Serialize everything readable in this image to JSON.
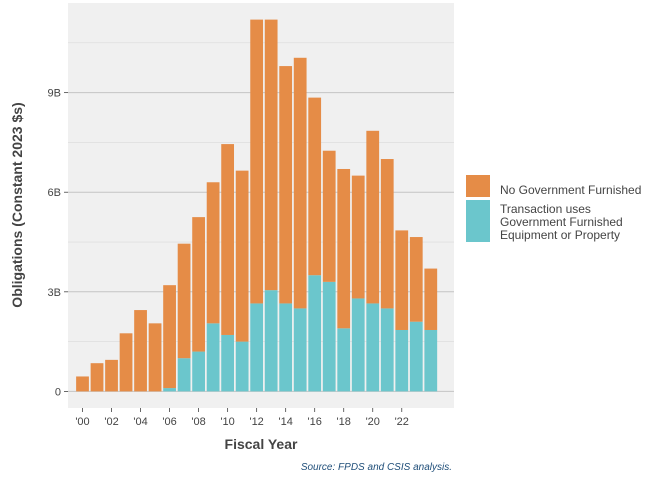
{
  "chart_data": {
    "type": "bar",
    "stacked": true,
    "title": "",
    "xlabel": "Fiscal Year",
    "ylabel": "Obligations (Constant 2023 $s)",
    "caption": "Source: FPDS and CSIS analysis.",
    "categories": [
      2000,
      2001,
      2002,
      2003,
      2004,
      2005,
      2006,
      2007,
      2008,
      2009,
      2010,
      2011,
      2012,
      2013,
      2014,
      2015,
      2016,
      2017,
      2018,
      2019,
      2020,
      2021,
      2022,
      2023,
      2024
    ],
    "x_ticks": [
      {
        "value": 2000,
        "label": "'00"
      },
      {
        "value": 2002,
        "label": "'02"
      },
      {
        "value": 2004,
        "label": "'04"
      },
      {
        "value": 2006,
        "label": "'06"
      },
      {
        "value": 2008,
        "label": "'08"
      },
      {
        "value": 2010,
        "label": "'10"
      },
      {
        "value": 2012,
        "label": "'12"
      },
      {
        "value": 2014,
        "label": "'14"
      },
      {
        "value": 2016,
        "label": "'16"
      },
      {
        "value": 2018,
        "label": "'18"
      },
      {
        "value": 2020,
        "label": "'20"
      },
      {
        "value": 2022,
        "label": "'22"
      }
    ],
    "y_ticks": [
      {
        "value": 0,
        "label": "0"
      },
      {
        "value": 3,
        "label": "3B"
      },
      {
        "value": 6,
        "label": "6B"
      },
      {
        "value": 9,
        "label": "9B"
      }
    ],
    "y_minor_ticks": [
      1.5,
      4.5,
      7.5,
      10.5
    ],
    "ylim": [
      -0.5,
      11.7
    ],
    "grid": true,
    "legend_position": "right",
    "series": [
      {
        "name": "Transaction uses Government Furnished Equipment or Property",
        "legend_lines": [
          "Transaction uses",
          "Government Furnished",
          "Equipment or Property"
        ],
        "color": "#6bc6cc",
        "values": [
          0,
          0,
          0,
          0,
          0,
          0,
          0.1,
          1.0,
          1.2,
          2.05,
          1.7,
          1.5,
          2.65,
          3.05,
          2.65,
          2.5,
          3.5,
          3.3,
          1.9,
          2.8,
          2.65,
          2.5,
          1.85,
          2.1,
          1.85
        ]
      },
      {
        "name": "No Government Furnished",
        "legend_lines": [
          "No Government Furnished"
        ],
        "color": "#e58c47",
        "values": [
          0.45,
          0.85,
          0.95,
          1.75,
          2.45,
          2.05,
          3.1,
          3.45,
          4.05,
          4.25,
          5.75,
          5.15,
          8.55,
          8.15,
          7.15,
          7.55,
          5.35,
          3.95,
          4.8,
          3.7,
          5.2,
          4.5,
          3.0,
          2.55,
          1.85
        ]
      }
    ],
    "legend_order": [
      1,
      0
    ]
  }
}
